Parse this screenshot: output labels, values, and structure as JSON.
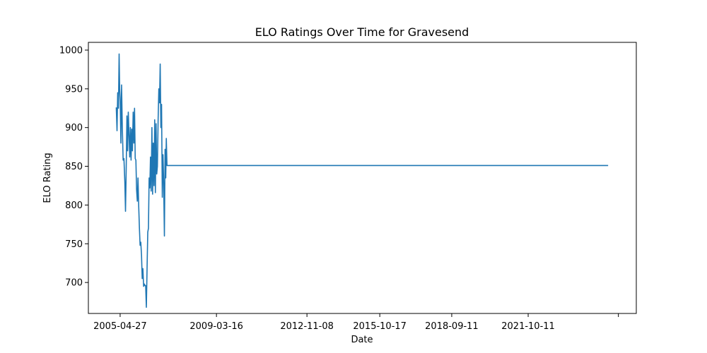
{
  "chart_data": {
    "type": "line",
    "title": "ELO Ratings Over Time for Gravesend",
    "xlabel": "Date",
    "ylabel": "ELO Rating",
    "xlim": [
      "2004-01-15",
      "2026-02-20"
    ],
    "ylim": [
      660,
      1010
    ],
    "x_ticks": [
      {
        "label": "2005-04-27",
        "value": "2005-04-27"
      },
      {
        "label": "2009-03-16",
        "value": "2009-03-16"
      },
      {
        "label": "2012-11-08",
        "value": "2012-11-08"
      },
      {
        "label": "2015-10-17",
        "value": "2015-10-17"
      },
      {
        "label": "2018-09-11",
        "value": "2018-09-11"
      },
      {
        "label": "2021-10-11",
        "value": "2021-10-11"
      },
      {
        "label": "",
        "value": "2025-06-01"
      }
    ],
    "y_ticks": [
      700,
      750,
      800,
      850,
      900,
      950,
      1000
    ],
    "grid": false,
    "line_color": "#1f77b4",
    "series": [
      {
        "name": "",
        "points": [
          [
            "2005-03-01",
            926
          ],
          [
            "2005-03-12",
            896
          ],
          [
            "2005-03-22",
            945
          ],
          [
            "2005-04-02",
            925
          ],
          [
            "2005-04-12",
            995
          ],
          [
            "2005-04-20",
            950
          ],
          [
            "2005-04-28",
            935
          ],
          [
            "2005-05-08",
            880
          ],
          [
            "2005-05-18",
            955
          ],
          [
            "2005-05-28",
            905
          ],
          [
            "2005-06-10",
            858
          ],
          [
            "2005-06-22",
            860
          ],
          [
            "2005-07-05",
            830
          ],
          [
            "2005-07-15",
            792
          ],
          [
            "2005-07-25",
            845
          ],
          [
            "2005-08-05",
            915
          ],
          [
            "2005-08-15",
            870
          ],
          [
            "2005-08-25",
            920
          ],
          [
            "2005-09-05",
            890
          ],
          [
            "2005-09-15",
            862
          ],
          [
            "2005-09-25",
            900
          ],
          [
            "2005-10-05",
            858
          ],
          [
            "2005-10-15",
            898
          ],
          [
            "2005-10-25",
            870
          ],
          [
            "2005-11-05",
            920
          ],
          [
            "2005-11-15",
            880
          ],
          [
            "2005-11-25",
            925
          ],
          [
            "2005-12-05",
            860
          ],
          [
            "2005-12-15",
            858
          ],
          [
            "2005-12-25",
            820
          ],
          [
            "2006-01-05",
            805
          ],
          [
            "2006-01-15",
            835
          ],
          [
            "2006-01-25",
            800
          ],
          [
            "2006-02-05",
            770
          ],
          [
            "2006-02-15",
            748
          ],
          [
            "2006-02-25",
            752
          ],
          [
            "2006-03-08",
            735
          ],
          [
            "2006-03-18",
            705
          ],
          [
            "2006-03-28",
            718
          ],
          [
            "2006-04-08",
            695
          ],
          [
            "2006-04-18",
            698
          ],
          [
            "2006-04-28",
            696
          ],
          [
            "2006-05-08",
            696
          ],
          [
            "2006-05-18",
            668
          ],
          [
            "2006-05-28",
            715
          ],
          [
            "2006-06-08",
            765
          ],
          [
            "2006-06-18",
            770
          ],
          [
            "2006-06-28",
            835
          ],
          [
            "2006-07-08",
            822
          ],
          [
            "2006-07-18",
            862
          ],
          [
            "2006-07-28",
            818
          ],
          [
            "2006-08-08",
            900
          ],
          [
            "2006-08-18",
            814
          ],
          [
            "2006-08-28",
            880
          ],
          [
            "2006-09-08",
            825
          ],
          [
            "2006-09-18",
            910
          ],
          [
            "2006-09-28",
            816
          ],
          [
            "2006-10-08",
            905
          ],
          [
            "2006-10-18",
            840
          ],
          [
            "2006-10-28",
            850
          ],
          [
            "2006-11-08",
            912
          ],
          [
            "2006-11-18",
            950
          ],
          [
            "2006-11-28",
            932
          ],
          [
            "2006-12-08",
            982
          ],
          [
            "2006-12-18",
            900
          ],
          [
            "2006-12-28",
            930
          ],
          [
            "2007-01-08",
            810
          ],
          [
            "2007-01-18",
            865
          ],
          [
            "2007-01-28",
            830
          ],
          [
            "2007-02-08",
            760
          ],
          [
            "2007-02-18",
            872
          ],
          [
            "2007-02-28",
            835
          ],
          [
            "2007-03-08",
            886
          ],
          [
            "2007-03-18",
            851
          ],
          [
            "2025-01-01",
            851
          ]
        ]
      }
    ]
  }
}
